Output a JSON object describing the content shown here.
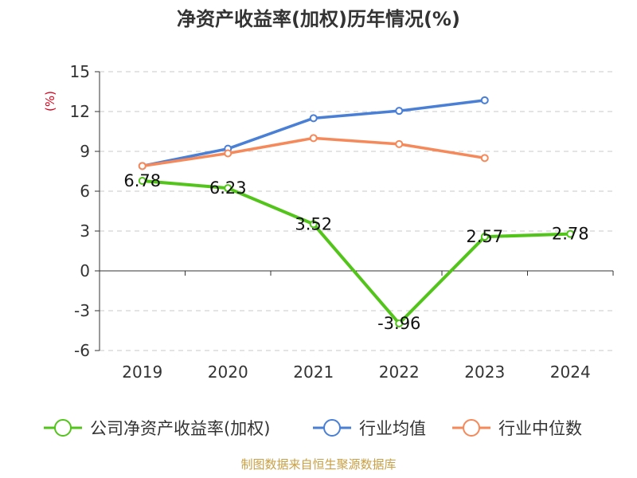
{
  "chart_data": {
    "type": "line",
    "title": "净资产收益率(加权)历年情况(%)",
    "ylabel": "(%)",
    "xlabel": "",
    "categories": [
      "2019",
      "2020",
      "2021",
      "2022",
      "2023",
      "2024"
    ],
    "y_ticks": [
      "15",
      "12",
      "9",
      "6",
      "3",
      "0",
      "-3",
      "-6"
    ],
    "ylim": [
      -6,
      15
    ],
    "grid": true,
    "legend_position": "bottom",
    "series": [
      {
        "name": "公司净资产收益率(加权)",
        "color": "#52c41a",
        "values": [
          6.78,
          6.23,
          3.52,
          -3.96,
          2.57,
          2.78
        ],
        "labels": [
          "6.78",
          "6.23",
          "3.52",
          "-3.96",
          "2.57",
          "2.78"
        ]
      },
      {
        "name": "行业均值",
        "color": "#4a7fd6",
        "values": [
          7.9,
          9.2,
          11.5,
          12.05,
          12.85,
          null
        ]
      },
      {
        "name": "行业中位数",
        "color": "#f5895a",
        "values": [
          7.9,
          8.85,
          10.0,
          9.55,
          8.5,
          null
        ]
      }
    ],
    "source": "制图数据来自恒生聚源数据库"
  }
}
